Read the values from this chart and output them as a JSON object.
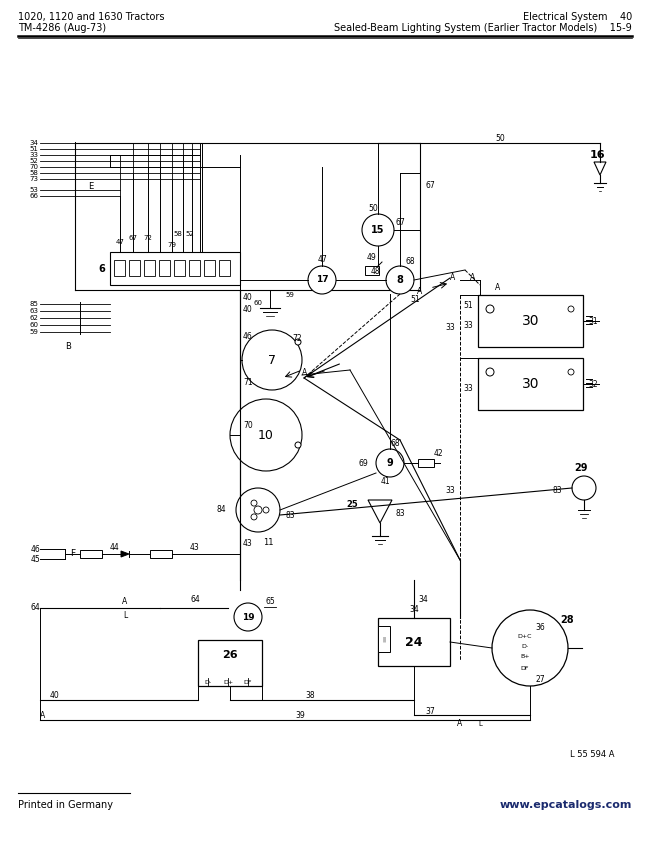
{
  "bg_color": "#ffffff",
  "header_left_line1": "1020, 1120 and 1630 Tractors",
  "header_left_line2": "TM-4286 (Aug-73)",
  "header_right_line1": "Electrical System    40",
  "header_right_line2": "Sealed-Beam Lighting System (Earlier Tractor Models)    15-9",
  "footer_left": "Printed in Germany",
  "footer_right": "www.epcatalogs.com",
  "watermark_ref": "L 55 594 A",
  "fig_width": 6.48,
  "fig_height": 8.42
}
